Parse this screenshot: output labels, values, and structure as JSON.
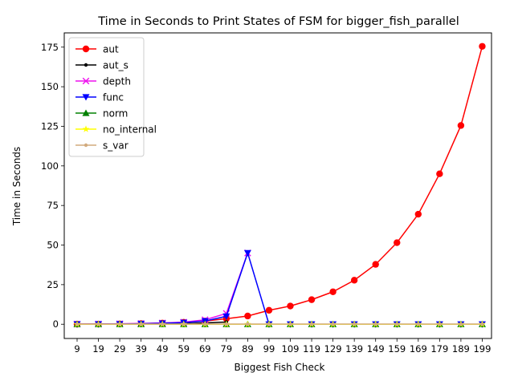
{
  "chart_data": {
    "type": "line",
    "title": "Time in Seconds to Print States of FSM for bigger_fish_parallel",
    "xlabel": "Biggest Fish Check",
    "ylabel": "Time in Seconds",
    "categories": [
      "9",
      "19",
      "29",
      "39",
      "49",
      "59",
      "69",
      "79",
      "89",
      "99",
      "109",
      "119",
      "129",
      "139",
      "149",
      "159",
      "169",
      "179",
      "189",
      "199"
    ],
    "ylim": [
      -9,
      184
    ],
    "yticks": [
      0,
      25,
      50,
      75,
      100,
      125,
      150,
      175
    ],
    "legend_position": "upper-left",
    "grid": false,
    "series": [
      {
        "name": "aut",
        "color": "#ff0000",
        "marker": "circle",
        "values": [
          0.05,
          0.1,
          0.2,
          0.4,
          0.7,
          1.2,
          2.0,
          3.5,
          5.2,
          8.8,
          11.5,
          15.5,
          20.5,
          27.8,
          37.8,
          51.5,
          69.5,
          95.0,
          125.5,
          175.5
        ]
      },
      {
        "name": "aut_s",
        "color": "#000000",
        "marker": "point",
        "values": [
          0.02,
          0.03,
          0.05,
          0.1,
          0.2,
          0.4,
          0.8,
          1.4,
          null,
          null,
          null,
          null,
          null,
          null,
          null,
          null,
          null,
          null,
          null,
          null
        ]
      },
      {
        "name": "depth",
        "color": "#ee10ee",
        "marker": "x",
        "values": [
          0.1,
          0.15,
          0.3,
          0.5,
          0.8,
          1.3,
          2.8,
          6.8,
          45.0,
          null,
          null,
          null,
          null,
          null,
          null,
          null,
          null,
          null,
          null,
          null
        ]
      },
      {
        "name": "func",
        "color": "#0000ff",
        "marker": "triangle-down",
        "values": [
          0.05,
          0.08,
          0.15,
          0.3,
          0.6,
          1.0,
          2.0,
          5.0,
          45.0,
          0,
          0,
          0,
          0,
          0,
          0,
          0,
          0,
          0,
          0,
          0
        ]
      },
      {
        "name": "norm",
        "color": "#008000",
        "marker": "triangle-up",
        "values": [
          0,
          0,
          0,
          0,
          0,
          0,
          0,
          0,
          0,
          0,
          0,
          0,
          0,
          0,
          0,
          0,
          0,
          0,
          0,
          0
        ]
      },
      {
        "name": "no_internal",
        "color": "#ffff00",
        "marker": "star",
        "values": [
          0,
          0,
          0,
          0,
          0,
          0,
          0,
          0,
          0,
          0,
          0,
          0,
          0,
          0,
          0,
          0,
          0,
          0,
          0,
          0
        ]
      },
      {
        "name": "s_var",
        "color": "#d2aa7d",
        "marker": "point",
        "values": [
          0.1,
          0.1,
          0.1,
          0.1,
          0.1,
          0.1,
          0.1,
          0.1,
          0.1,
          0.1,
          0.1,
          0.1,
          0.1,
          0.1,
          0.1,
          0.1,
          0.1,
          0.1,
          0.1,
          0.1
        ]
      }
    ]
  }
}
